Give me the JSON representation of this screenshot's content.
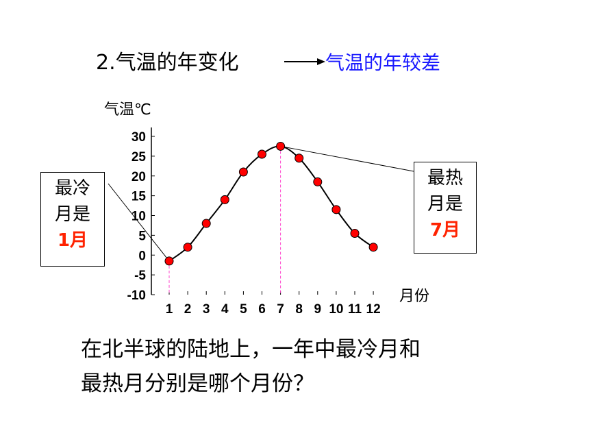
{
  "heading": {
    "title": "2.气温的年变化",
    "subtitle": "气温的年较差"
  },
  "callouts": {
    "coldest": {
      "line1": "最冷",
      "line2": "月是",
      "highlight": "1月"
    },
    "hottest": {
      "line1": "最热",
      "line2": "月是",
      "highlight": "7月"
    }
  },
  "question": {
    "line1": "在北半球的陆地上，一年中最冷月和",
    "line2": "最热月分别是哪个月份？"
  },
  "colors": {
    "curve": "#000000",
    "point": "#ff0000",
    "guide": "#ff44cc",
    "subtitle": "#1a1aff",
    "highlight": "#ff2200"
  },
  "chart_data": {
    "type": "line",
    "ylabel": "气温℃",
    "xlabel": "月份",
    "ylim": [
      -10,
      30
    ],
    "y_ticks": [
      "30",
      "25",
      "20",
      "15",
      "10",
      "5",
      "0",
      "-5",
      "-10"
    ],
    "x": [
      1,
      2,
      3,
      4,
      5,
      6,
      7,
      8,
      9,
      10,
      11,
      12
    ],
    "x_tick_labels": [
      "1",
      "2",
      "3",
      "4",
      "5",
      "6",
      "7",
      "8",
      "9",
      "10",
      "11",
      "12"
    ],
    "series": [
      {
        "values": [
          -1.5,
          2,
          8,
          14,
          21,
          25.5,
          27.5,
          24.5,
          18.5,
          11.5,
          5.5,
          2
        ]
      }
    ],
    "markers": {
      "coldest_month": 1,
      "hottest_month": 7
    },
    "grid": false,
    "legend": "none"
  }
}
